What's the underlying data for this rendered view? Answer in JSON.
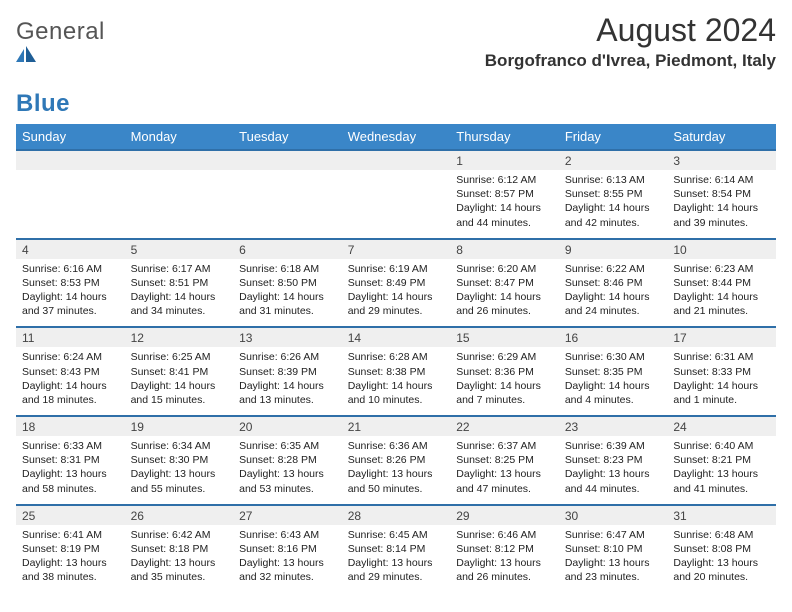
{
  "logo": {
    "text_general": "General",
    "text_blue": "Blue"
  },
  "title": "August 2024",
  "location": "Borgofranco d'Ivrea, Piedmont, Italy",
  "colors": {
    "header_bg": "#3a86c8",
    "header_text": "#ffffff",
    "daynum_bg": "#efefef",
    "daynum_border": "#2f6fa8",
    "logo_blue": "#2f78b7",
    "text": "#222222",
    "page_bg": "#ffffff"
  },
  "typography": {
    "month_title_pt": 32,
    "location_pt": 17,
    "weekday_pt": 13,
    "daynum_pt": 12,
    "cell_pt": 10.5
  },
  "weekdays": [
    "Sunday",
    "Monday",
    "Tuesday",
    "Wednesday",
    "Thursday",
    "Friday",
    "Saturday"
  ],
  "weeks": [
    {
      "nums": [
        "",
        "",
        "",
        "",
        "1",
        "2",
        "3"
      ],
      "cells": [
        null,
        null,
        null,
        null,
        {
          "sunrise": "Sunrise: 6:12 AM",
          "sunset": "Sunset: 8:57 PM",
          "d1": "Daylight: 14 hours",
          "d2": "and 44 minutes."
        },
        {
          "sunrise": "Sunrise: 6:13 AM",
          "sunset": "Sunset: 8:55 PM",
          "d1": "Daylight: 14 hours",
          "d2": "and 42 minutes."
        },
        {
          "sunrise": "Sunrise: 6:14 AM",
          "sunset": "Sunset: 8:54 PM",
          "d1": "Daylight: 14 hours",
          "d2": "and 39 minutes."
        }
      ]
    },
    {
      "nums": [
        "4",
        "5",
        "6",
        "7",
        "8",
        "9",
        "10"
      ],
      "cells": [
        {
          "sunrise": "Sunrise: 6:16 AM",
          "sunset": "Sunset: 8:53 PM",
          "d1": "Daylight: 14 hours",
          "d2": "and 37 minutes."
        },
        {
          "sunrise": "Sunrise: 6:17 AM",
          "sunset": "Sunset: 8:51 PM",
          "d1": "Daylight: 14 hours",
          "d2": "and 34 minutes."
        },
        {
          "sunrise": "Sunrise: 6:18 AM",
          "sunset": "Sunset: 8:50 PM",
          "d1": "Daylight: 14 hours",
          "d2": "and 31 minutes."
        },
        {
          "sunrise": "Sunrise: 6:19 AM",
          "sunset": "Sunset: 8:49 PM",
          "d1": "Daylight: 14 hours",
          "d2": "and 29 minutes."
        },
        {
          "sunrise": "Sunrise: 6:20 AM",
          "sunset": "Sunset: 8:47 PM",
          "d1": "Daylight: 14 hours",
          "d2": "and 26 minutes."
        },
        {
          "sunrise": "Sunrise: 6:22 AM",
          "sunset": "Sunset: 8:46 PM",
          "d1": "Daylight: 14 hours",
          "d2": "and 24 minutes."
        },
        {
          "sunrise": "Sunrise: 6:23 AM",
          "sunset": "Sunset: 8:44 PM",
          "d1": "Daylight: 14 hours",
          "d2": "and 21 minutes."
        }
      ]
    },
    {
      "nums": [
        "11",
        "12",
        "13",
        "14",
        "15",
        "16",
        "17"
      ],
      "cells": [
        {
          "sunrise": "Sunrise: 6:24 AM",
          "sunset": "Sunset: 8:43 PM",
          "d1": "Daylight: 14 hours",
          "d2": "and 18 minutes."
        },
        {
          "sunrise": "Sunrise: 6:25 AM",
          "sunset": "Sunset: 8:41 PM",
          "d1": "Daylight: 14 hours",
          "d2": "and 15 minutes."
        },
        {
          "sunrise": "Sunrise: 6:26 AM",
          "sunset": "Sunset: 8:39 PM",
          "d1": "Daylight: 14 hours",
          "d2": "and 13 minutes."
        },
        {
          "sunrise": "Sunrise: 6:28 AM",
          "sunset": "Sunset: 8:38 PM",
          "d1": "Daylight: 14 hours",
          "d2": "and 10 minutes."
        },
        {
          "sunrise": "Sunrise: 6:29 AM",
          "sunset": "Sunset: 8:36 PM",
          "d1": "Daylight: 14 hours",
          "d2": "and 7 minutes."
        },
        {
          "sunrise": "Sunrise: 6:30 AM",
          "sunset": "Sunset: 8:35 PM",
          "d1": "Daylight: 14 hours",
          "d2": "and 4 minutes."
        },
        {
          "sunrise": "Sunrise: 6:31 AM",
          "sunset": "Sunset: 8:33 PM",
          "d1": "Daylight: 14 hours",
          "d2": "and 1 minute."
        }
      ]
    },
    {
      "nums": [
        "18",
        "19",
        "20",
        "21",
        "22",
        "23",
        "24"
      ],
      "cells": [
        {
          "sunrise": "Sunrise: 6:33 AM",
          "sunset": "Sunset: 8:31 PM",
          "d1": "Daylight: 13 hours",
          "d2": "and 58 minutes."
        },
        {
          "sunrise": "Sunrise: 6:34 AM",
          "sunset": "Sunset: 8:30 PM",
          "d1": "Daylight: 13 hours",
          "d2": "and 55 minutes."
        },
        {
          "sunrise": "Sunrise: 6:35 AM",
          "sunset": "Sunset: 8:28 PM",
          "d1": "Daylight: 13 hours",
          "d2": "and 53 minutes."
        },
        {
          "sunrise": "Sunrise: 6:36 AM",
          "sunset": "Sunset: 8:26 PM",
          "d1": "Daylight: 13 hours",
          "d2": "and 50 minutes."
        },
        {
          "sunrise": "Sunrise: 6:37 AM",
          "sunset": "Sunset: 8:25 PM",
          "d1": "Daylight: 13 hours",
          "d2": "and 47 minutes."
        },
        {
          "sunrise": "Sunrise: 6:39 AM",
          "sunset": "Sunset: 8:23 PM",
          "d1": "Daylight: 13 hours",
          "d2": "and 44 minutes."
        },
        {
          "sunrise": "Sunrise: 6:40 AM",
          "sunset": "Sunset: 8:21 PM",
          "d1": "Daylight: 13 hours",
          "d2": "and 41 minutes."
        }
      ]
    },
    {
      "nums": [
        "25",
        "26",
        "27",
        "28",
        "29",
        "30",
        "31"
      ],
      "cells": [
        {
          "sunrise": "Sunrise: 6:41 AM",
          "sunset": "Sunset: 8:19 PM",
          "d1": "Daylight: 13 hours",
          "d2": "and 38 minutes."
        },
        {
          "sunrise": "Sunrise: 6:42 AM",
          "sunset": "Sunset: 8:18 PM",
          "d1": "Daylight: 13 hours",
          "d2": "and 35 minutes."
        },
        {
          "sunrise": "Sunrise: 6:43 AM",
          "sunset": "Sunset: 8:16 PM",
          "d1": "Daylight: 13 hours",
          "d2": "and 32 minutes."
        },
        {
          "sunrise": "Sunrise: 6:45 AM",
          "sunset": "Sunset: 8:14 PM",
          "d1": "Daylight: 13 hours",
          "d2": "and 29 minutes."
        },
        {
          "sunrise": "Sunrise: 6:46 AM",
          "sunset": "Sunset: 8:12 PM",
          "d1": "Daylight: 13 hours",
          "d2": "and 26 minutes."
        },
        {
          "sunrise": "Sunrise: 6:47 AM",
          "sunset": "Sunset: 8:10 PM",
          "d1": "Daylight: 13 hours",
          "d2": "and 23 minutes."
        },
        {
          "sunrise": "Sunrise: 6:48 AM",
          "sunset": "Sunset: 8:08 PM",
          "d1": "Daylight: 13 hours",
          "d2": "and 20 minutes."
        }
      ]
    }
  ]
}
